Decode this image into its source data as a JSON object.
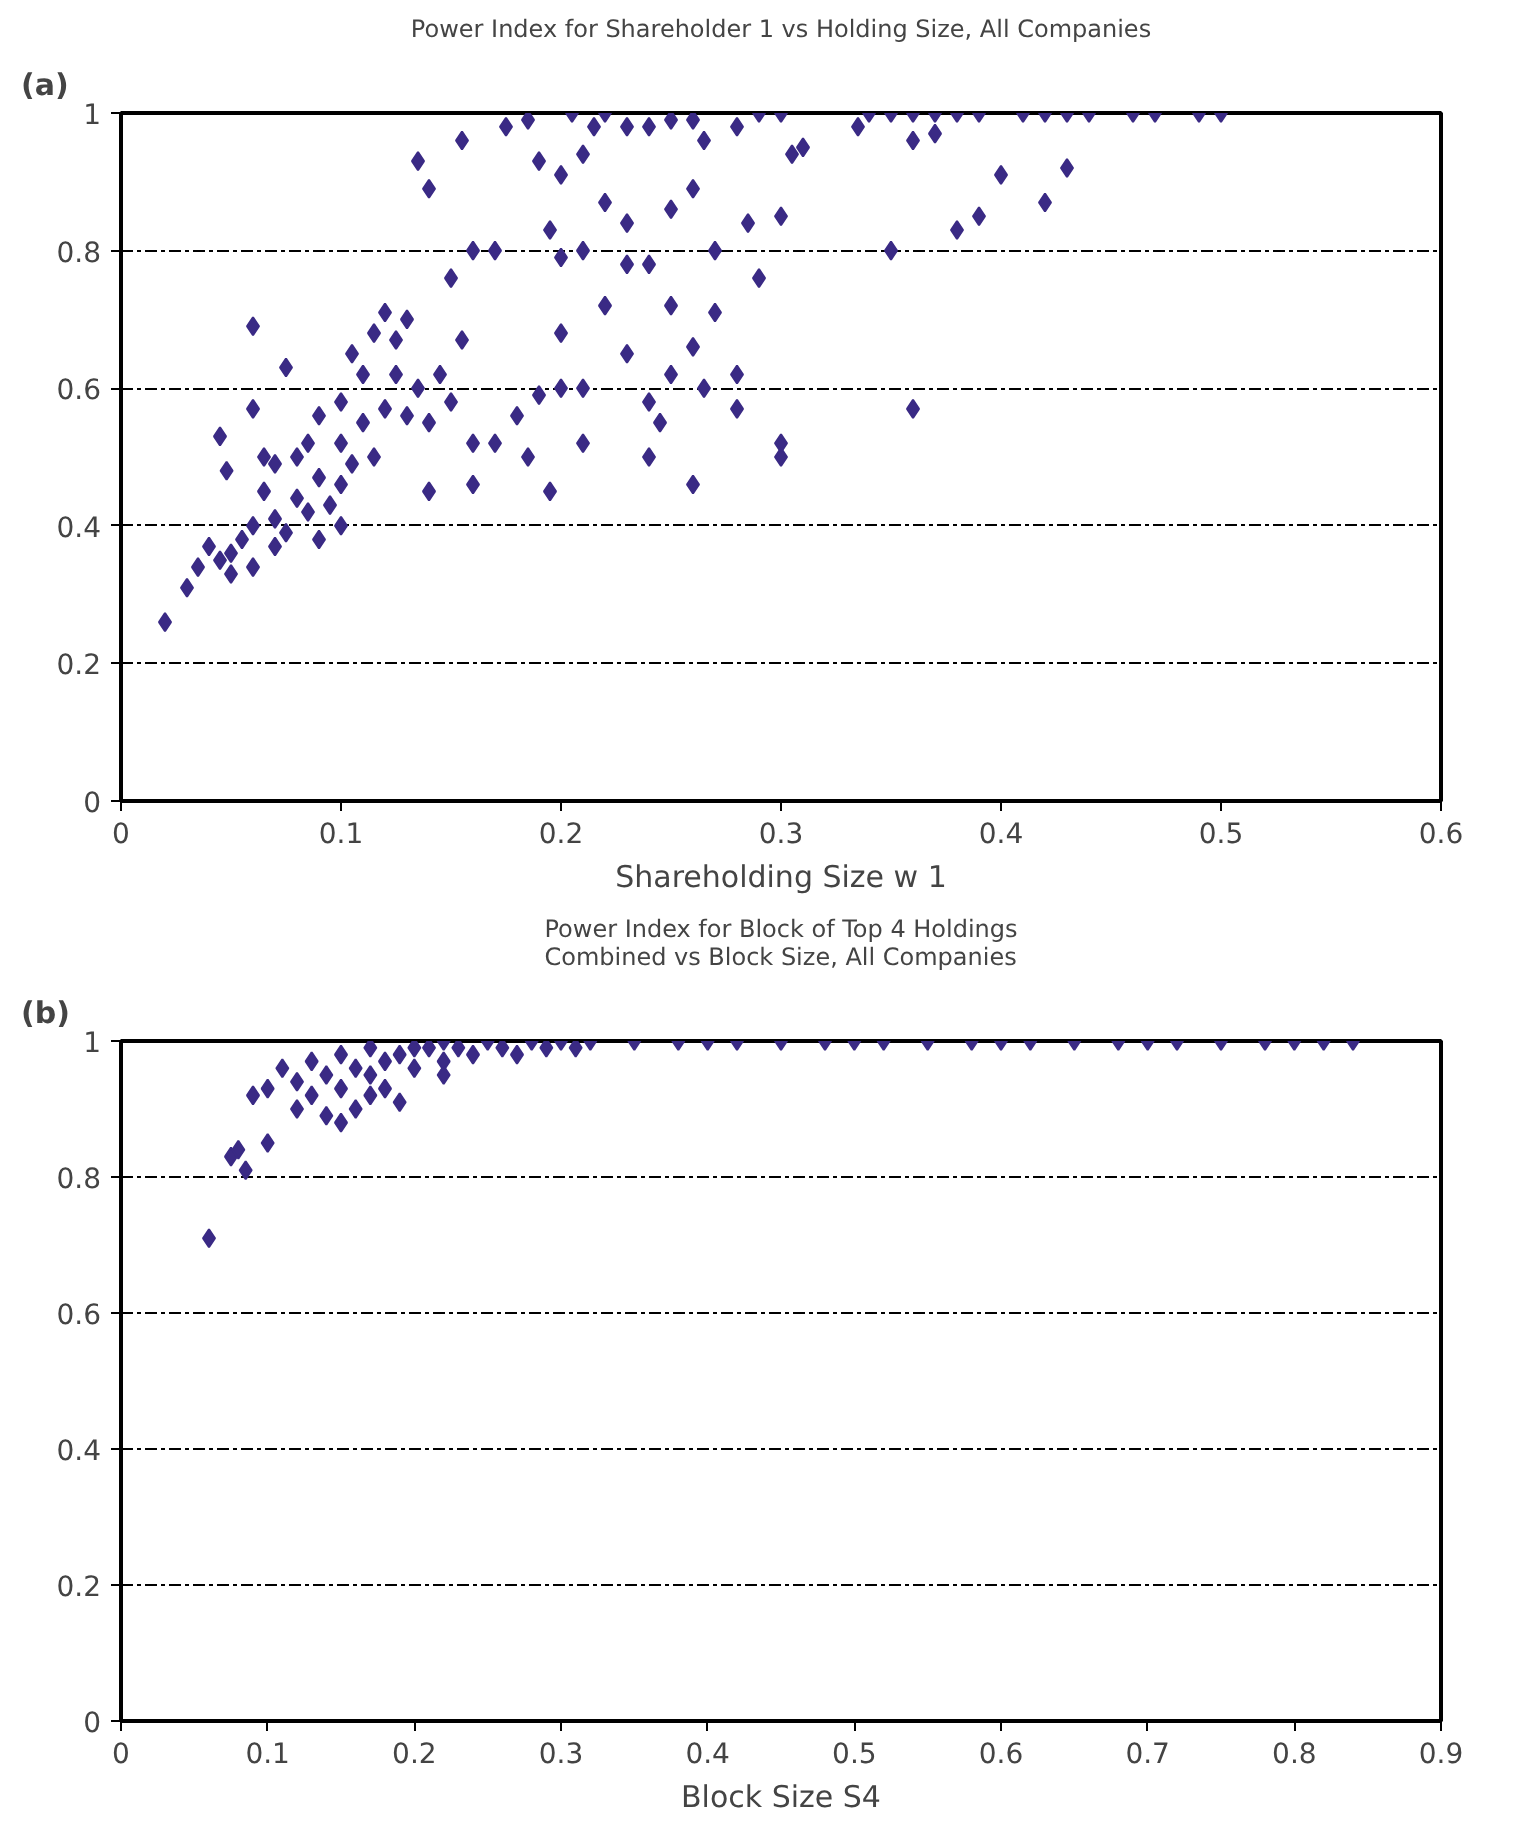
{
  "chart_data": [
    {
      "type": "scatter",
      "title": "Power Index for Shareholder 1 vs Holding Size, All Companies",
      "xlabel": "Shareholding Size w 1",
      "annotations": [
        "(a)"
      ],
      "marker": "diamond",
      "grid": "y",
      "xlim": [
        0,
        0.6
      ],
      "ylim": [
        0,
        1
      ],
      "xticks": [
        0,
        0.1,
        0.2,
        0.3,
        0.4,
        0.5,
        0.6
      ],
      "yticks": [
        0,
        0.2,
        0.4,
        0.6,
        0.8,
        1
      ],
      "series": [
        {
          "color": "#3a2a85",
          "x": [
            0.02,
            0.03,
            0.035,
            0.04,
            0.045,
            0.05,
            0.05,
            0.055,
            0.06,
            0.045,
            0.06,
            0.06,
            0.075,
            0.048,
            0.065,
            0.07,
            0.075,
            0.08,
            0.085,
            0.09,
            0.095,
            0.1,
            0.1,
            0.105,
            0.11,
            0.115,
            0.12,
            0.125,
            0.13,
            0.11,
            0.1,
            0.09,
            0.085,
            0.08,
            0.07,
            0.065,
            0.105,
            0.115,
            0.12,
            0.125,
            0.135,
            0.14,
            0.145,
            0.15,
            0.155,
            0.16,
            0.16,
            0.14,
            0.13,
            0.15,
            0.16,
            0.17,
            0.135,
            0.155,
            0.14,
            0.175,
            0.185,
            0.19,
            0.2,
            0.21,
            0.22,
            0.205,
            0.23,
            0.24,
            0.25,
            0.26,
            0.265,
            0.28,
            0.29,
            0.3,
            0.215,
            0.22,
            0.23,
            0.25,
            0.26,
            0.27,
            0.285,
            0.29,
            0.3,
            0.305,
            0.195,
            0.2,
            0.21,
            0.22,
            0.23,
            0.24,
            0.25,
            0.26,
            0.27,
            0.28,
            0.2,
            0.21,
            0.23,
            0.24,
            0.25,
            0.265,
            0.28,
            0.3,
            0.3,
            0.2,
            0.19,
            0.18,
            0.17,
            0.185,
            0.195,
            0.24,
            0.26,
            0.245,
            0.21,
            0.31,
            0.335,
            0.34,
            0.35,
            0.36,
            0.37,
            0.38,
            0.39,
            0.41,
            0.42,
            0.43,
            0.44,
            0.46,
            0.47,
            0.49,
            0.5,
            0.36,
            0.37,
            0.4,
            0.42,
            0.43,
            0.38,
            0.39,
            0.35,
            0.36,
            0.1,
            0.09,
            0.06,
            0.07
          ],
          "values": [
            0.26,
            0.31,
            0.34,
            0.37,
            0.35,
            0.36,
            0.33,
            0.38,
            0.34,
            0.53,
            0.57,
            0.69,
            0.63,
            0.48,
            0.45,
            0.41,
            0.39,
            0.44,
            0.42,
            0.47,
            0.43,
            0.46,
            0.52,
            0.49,
            0.55,
            0.5,
            0.57,
            0.62,
            0.7,
            0.62,
            0.58,
            0.56,
            0.52,
            0.5,
            0.49,
            0.5,
            0.65,
            0.68,
            0.71,
            0.67,
            0.6,
            0.55,
            0.62,
            0.58,
            0.67,
            0.52,
            0.46,
            0.45,
            0.56,
            0.76,
            0.8,
            0.8,
            0.93,
            0.96,
            0.89,
            0.98,
            0.99,
            0.93,
            0.91,
            0.94,
            1,
            1,
            0.98,
            0.98,
            0.99,
            0.99,
            0.96,
            0.98,
            1,
            1,
            0.98,
            0.87,
            0.84,
            0.86,
            0.89,
            0.8,
            0.84,
            0.76,
            0.85,
            0.94,
            0.83,
            0.79,
            0.8,
            0.72,
            0.78,
            0.78,
            0.72,
            0.66,
            0.71,
            0.62,
            0.68,
            0.6,
            0.65,
            0.58,
            0.62,
            0.6,
            0.57,
            0.52,
            0.5,
            0.6,
            0.59,
            0.56,
            0.52,
            0.5,
            0.45,
            0.5,
            0.46,
            0.55,
            0.52,
            0.95,
            0.98,
            1,
            1,
            1,
            1,
            1,
            1,
            1,
            1,
            1,
            1,
            1,
            1,
            1,
            1,
            0.96,
            0.97,
            0.91,
            0.87,
            0.92,
            0.83,
            0.85,
            0.8,
            0.57,
            0.4,
            0.38,
            0.4,
            0.37
          ]
        }
      ]
    },
    {
      "type": "scatter",
      "title": "Power Index for Block of Top 4 Holdings\nCombined vs Block Size, All Companies",
      "xlabel": "Block Size S4",
      "annotations": [
        "(b)"
      ],
      "marker": "diamond",
      "grid": "y",
      "xlim": [
        0,
        0.9
      ],
      "ylim": [
        0,
        1
      ],
      "xticks": [
        0,
        0.1,
        0.2,
        0.3,
        0.4,
        0.5,
        0.6,
        0.7,
        0.8,
        0.9
      ],
      "yticks": [
        0,
        0.2,
        0.4,
        0.6,
        0.8,
        1
      ],
      "series": [
        {
          "color": "#3a2a85",
          "x": [
            0.06,
            0.075,
            0.08,
            0.085,
            0.1,
            0.1,
            0.09,
            0.11,
            0.12,
            0.12,
            0.13,
            0.14,
            0.15,
            0.15,
            0.16,
            0.17,
            0.17,
            0.18,
            0.18,
            0.19,
            0.2,
            0.2,
            0.21,
            0.22,
            0.22,
            0.23,
            0.24,
            0.25,
            0.26,
            0.27,
            0.28,
            0.29,
            0.3,
            0.31,
            0.32,
            0.35,
            0.38,
            0.4,
            0.42,
            0.45,
            0.48,
            0.5,
            0.52,
            0.55,
            0.58,
            0.6,
            0.62,
            0.65,
            0.68,
            0.7,
            0.72,
            0.75,
            0.78,
            0.8,
            0.82,
            0.84,
            0.13,
            0.14,
            0.16,
            0.17,
            0.15,
            0.19,
            0.22
          ],
          "values": [
            0.71,
            0.83,
            0.84,
            0.81,
            0.85,
            0.93,
            0.92,
            0.96,
            0.94,
            0.9,
            0.97,
            0.95,
            0.93,
            0.98,
            0.96,
            0.95,
            0.99,
            0.97,
            0.93,
            0.98,
            0.96,
            0.99,
            0.99,
            0.97,
            1,
            0.99,
            0.98,
            1,
            0.99,
            0.98,
            1,
            0.99,
            1,
            0.99,
            1,
            1,
            1,
            1,
            1,
            1,
            1,
            1,
            1,
            1,
            1,
            1,
            1,
            1,
            1,
            1,
            1,
            1,
            1,
            1,
            1,
            1,
            0.92,
            0.89,
            0.9,
            0.92,
            0.88,
            0.91,
            0.95
          ]
        }
      ]
    }
  ]
}
